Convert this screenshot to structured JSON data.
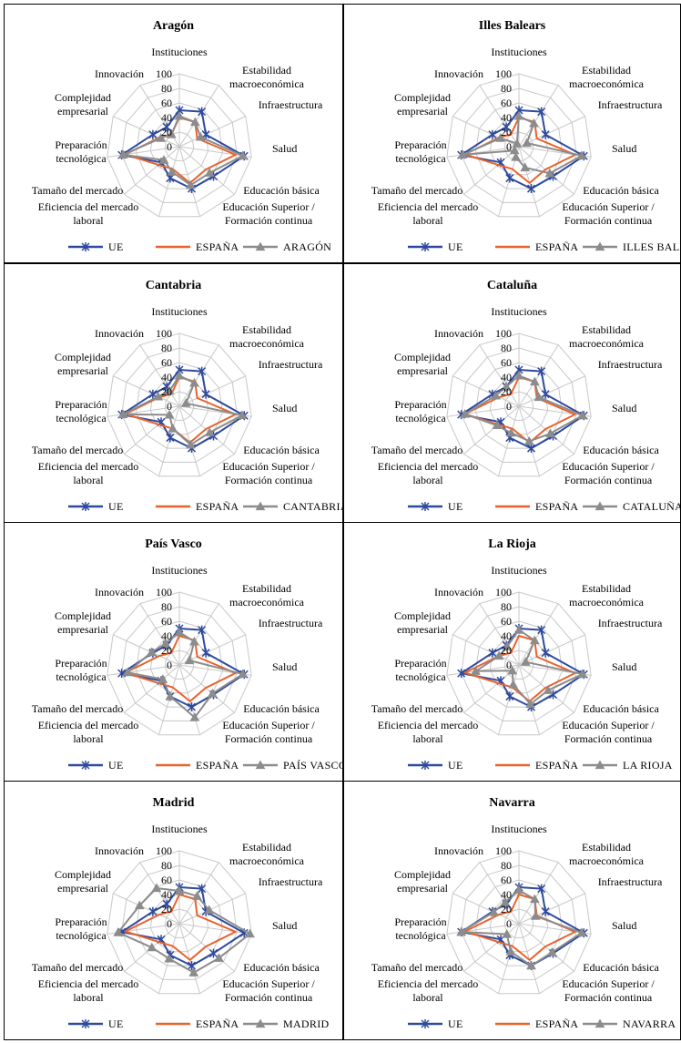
{
  "axes": [
    "Instituciones",
    "Estabilidad macroeconómica",
    "Infraestructura",
    "Salud",
    "Educación  básica",
    "Educación Superior / Formación continua",
    "Eficiencia del mercado laboral",
    "Tamaño del mercado",
    "Preparación tecnológica",
    "Complejidad empresarial",
    "Innovación"
  ],
  "axis_label_lines": [
    [
      "Instituciones"
    ],
    [
      "Estabilidad",
      "macroeconómica"
    ],
    [
      "Infraestructura"
    ],
    [
      "Salud"
    ],
    [
      "Educación  básica"
    ],
    [
      "Educación Superior /",
      "Formación continua"
    ],
    [
      "Eficiencia del mercado",
      "laboral"
    ],
    [
      "Tamaño del mercado"
    ],
    [
      "Preparación",
      "tecnológica"
    ],
    [
      "Complejidad",
      "empresarial"
    ],
    [
      "Innovación"
    ]
  ],
  "radial_ticks": [
    "0",
    "20",
    "40",
    "60",
    "80",
    "100"
  ],
  "colors": {
    "UE": "#2e4a9e",
    "ESPAÑA": "#e8622c",
    "region": "#8c8c8c",
    "grid": "#c8c8c8"
  },
  "chart_data": [
    {
      "type": "radar",
      "title": "Aragón",
      "rlim": [
        0,
        100
      ],
      "categories_ref": "axes",
      "series": [
        {
          "name": "UE",
          "values": [
            50,
            57,
            40,
            90,
            62,
            60,
            45,
            33,
            80,
            40,
            32
          ]
        },
        {
          "name": "ESPAÑA",
          "values": [
            40,
            40,
            27,
            78,
            48,
            52,
            32,
            38,
            75,
            30,
            20
          ]
        },
        {
          "name": "ARAGÓN",
          "values": [
            42,
            40,
            32,
            88,
            55,
            55,
            36,
            28,
            78,
            28,
            20
          ]
        }
      ]
    },
    {
      "type": "radar",
      "title": "Illes Balears",
      "rlim": [
        0,
        100
      ],
      "categories_ref": "axes",
      "series": [
        {
          "name": "UE",
          "values": [
            50,
            57,
            40,
            90,
            62,
            60,
            45,
            33,
            80,
            40,
            32
          ]
        },
        {
          "name": "ESPAÑA",
          "values": [
            40,
            40,
            27,
            78,
            48,
            52,
            32,
            38,
            75,
            30,
            20
          ]
        },
        {
          "name": "ILLES BALEARS",
          "values": [
            42,
            38,
            12,
            87,
            56,
            30,
            15,
            8,
            78,
            28,
            5
          ]
        }
      ]
    },
    {
      "type": "radar",
      "title": "Cantabria",
      "rlim": [
        0,
        100
      ],
      "categories_ref": "axes",
      "series": [
        {
          "name": "UE",
          "values": [
            50,
            57,
            40,
            90,
            62,
            60,
            45,
            33,
            80,
            40,
            32
          ]
        },
        {
          "name": "ESPAÑA",
          "values": [
            40,
            40,
            27,
            78,
            48,
            52,
            32,
            38,
            75,
            30,
            20
          ]
        },
        {
          "name": "CANTABRIA",
          "values": [
            42,
            38,
            10,
            87,
            55,
            55,
            32,
            18,
            78,
            32,
            25
          ]
        }
      ]
    },
    {
      "type": "radar",
      "title": "Cataluña",
      "rlim": [
        0,
        100
      ],
      "categories_ref": "axes",
      "series": [
        {
          "name": "UE",
          "values": [
            50,
            57,
            40,
            90,
            62,
            60,
            45,
            33,
            80,
            40,
            32
          ]
        },
        {
          "name": "ESPAÑA",
          "values": [
            40,
            40,
            27,
            78,
            48,
            52,
            32,
            38,
            75,
            30,
            20
          ]
        },
        {
          "name": "CATALUÑA",
          "values": [
            42,
            40,
            30,
            88,
            57,
            50,
            38,
            40,
            75,
            35,
            32
          ]
        }
      ]
    },
    {
      "type": "radar",
      "title": "País Vasco",
      "rlim": [
        0,
        100
      ],
      "categories_ref": "axes",
      "series": [
        {
          "name": "UE",
          "values": [
            50,
            57,
            40,
            90,
            62,
            60,
            45,
            33,
            80,
            40,
            32
          ]
        },
        {
          "name": "ESPAÑA",
          "values": [
            40,
            40,
            27,
            78,
            48,
            52,
            32,
            38,
            75,
            30,
            20
          ]
        },
        {
          "name": "PAÍS VASCO",
          "values": [
            45,
            38,
            15,
            88,
            60,
            75,
            45,
            30,
            72,
            42,
            35
          ]
        }
      ]
    },
    {
      "type": "radar",
      "title": "La Rioja",
      "rlim": [
        0,
        100
      ],
      "categories_ref": "axes",
      "series": [
        {
          "name": "UE",
          "values": [
            50,
            57,
            40,
            90,
            62,
            60,
            45,
            33,
            80,
            40,
            32
          ]
        },
        {
          "name": "ESPAÑA",
          "values": [
            40,
            40,
            27,
            78,
            48,
            52,
            32,
            38,
            75,
            30,
            20
          ]
        },
        {
          "name": "LA RIOJA",
          "values": [
            48,
            40,
            10,
            88,
            53,
            56,
            28,
            12,
            60,
            30,
            30
          ]
        }
      ]
    },
    {
      "type": "radar",
      "title": "Madrid",
      "rlim": [
        0,
        100
      ],
      "categories_ref": "axes",
      "series": [
        {
          "name": "UE",
          "values": [
            50,
            57,
            40,
            90,
            62,
            60,
            45,
            33,
            80,
            40,
            32
          ]
        },
        {
          "name": "ESPAÑA",
          "values": [
            40,
            40,
            27,
            78,
            48,
            52,
            32,
            38,
            75,
            30,
            20
          ]
        },
        {
          "name": "MADRID",
          "values": [
            45,
            45,
            45,
            98,
            72,
            70,
            50,
            50,
            85,
            60,
            58
          ]
        }
      ]
    },
    {
      "type": "radar",
      "title": "Navarra",
      "rlim": [
        0,
        100
      ],
      "categories_ref": "axes",
      "series": [
        {
          "name": "UE",
          "values": [
            50,
            57,
            40,
            90,
            62,
            60,
            45,
            33,
            80,
            40,
            32
          ]
        },
        {
          "name": "ESPAÑA",
          "values": [
            40,
            40,
            27,
            78,
            48,
            52,
            32,
            38,
            75,
            30,
            20
          ]
        },
        {
          "name": "NAVARRA",
          "values": [
            46,
            40,
            25,
            87,
            60,
            60,
            40,
            22,
            80,
            38,
            35
          ]
        }
      ]
    }
  ]
}
